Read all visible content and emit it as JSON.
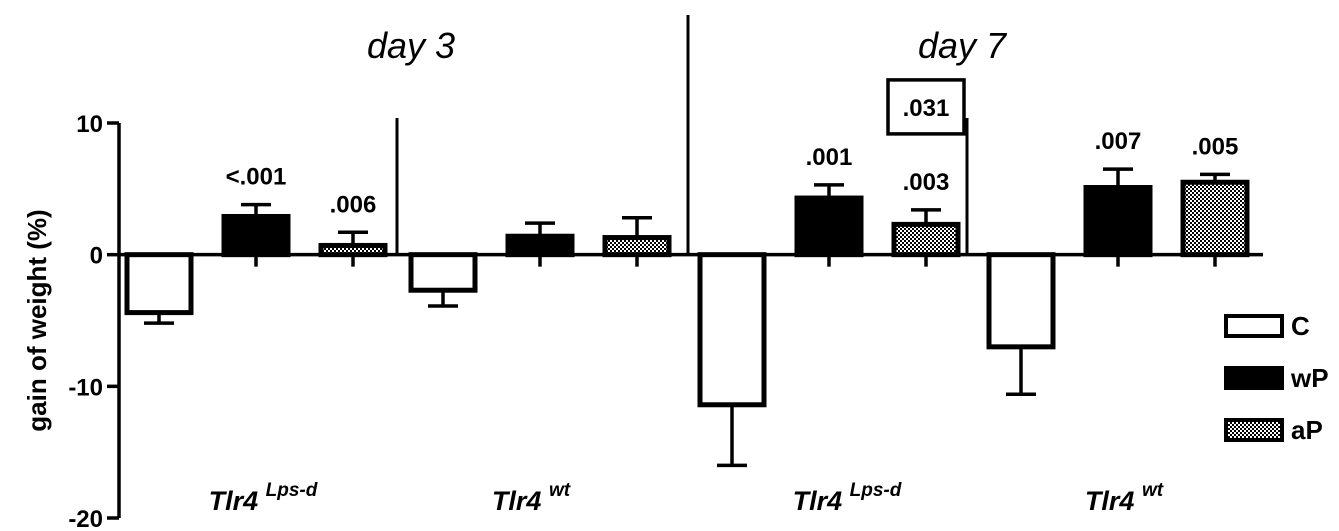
{
  "chart_data": {
    "type": "bar",
    "ylabel": "gain of weight (%)",
    "ylim": [
      -20,
      10
    ],
    "yticks": [
      10,
      0,
      -10,
      -20
    ],
    "ytick_labels": [
      "10",
      "0",
      "-10",
      "-20"
    ],
    "grid": false,
    "legend_position": "right",
    "panels": [
      {
        "title": "day 3",
        "groups": [
          0,
          1
        ]
      },
      {
        "title": "day 7",
        "groups": [
          2,
          3
        ]
      }
    ],
    "groups": [
      {
        "label": "Tlr4",
        "superscript": "Lps-d"
      },
      {
        "label": "Tlr4",
        "superscript": "wt"
      },
      {
        "label": "Tlr4",
        "superscript": "Lps-d"
      },
      {
        "label": "Tlr4",
        "superscript": "wt"
      }
    ],
    "series": [
      {
        "name": "C",
        "fill": "white",
        "values": [
          -4.4,
          -2.7,
          -11.4,
          -7.0
        ],
        "errors": [
          0.8,
          1.2,
          4.6,
          3.6
        ],
        "pvalues": [
          "",
          "",
          "",
          ""
        ]
      },
      {
        "name": "wP",
        "fill": "black",
        "values": [
          2.9,
          1.4,
          4.3,
          5.1
        ],
        "errors": [
          0.9,
          1.0,
          1.0,
          1.4
        ],
        "pvalues": [
          "<.001",
          "",
          ".001",
          ".007"
        ]
      },
      {
        "name": "aP",
        "fill": "checker",
        "values": [
          0.7,
          1.3,
          2.3,
          5.5
        ],
        "errors": [
          1.0,
          1.5,
          1.1,
          0.6
        ],
        "pvalues": [
          ".006",
          "",
          ".003",
          ".005"
        ]
      }
    ],
    "annotations": [
      {
        "text": ".031",
        "boxed": true,
        "group": 2,
        "series": 2
      }
    ],
    "colors": {
      "bar_stroke": "#000000",
      "axis": "#000000"
    }
  }
}
